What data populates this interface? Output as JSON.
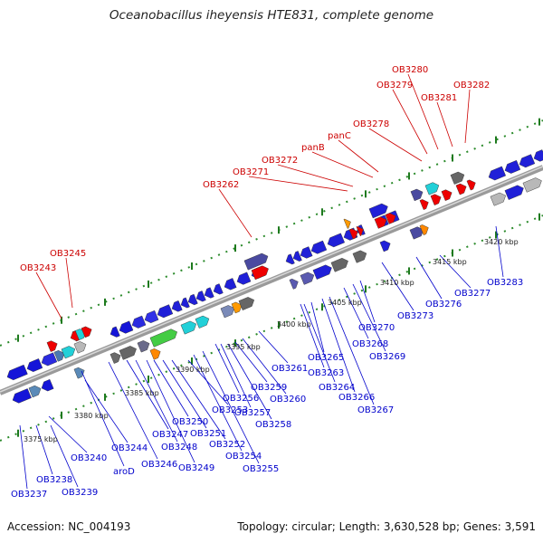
{
  "title": "Oceanobacillus iheyensis HTE831, complete genome",
  "footer": {
    "accession": "Accession: NC_004193",
    "topology": "Topology: circular; Length: 3,630,528 bp; Genes: 3,591"
  },
  "colors": {
    "forward_label": "#cc0000",
    "reverse_label": "#0000cc",
    "backbone": "#999999",
    "tick": "#1e7a1e"
  },
  "scale_labels": [
    "3375 kbp",
    "3380 kbp",
    "3385 kbp",
    "3390 kbp",
    "3395 kbp",
    "3400 kbp",
    "3405 kbp",
    "3410 kbp",
    "3415 kbp",
    "3420 kbp"
  ],
  "forward_genes": [
    "OB3243",
    "OB3245",
    "OB3262",
    "OB3271",
    "OB3272",
    "panB",
    "panC",
    "OB3278",
    "OB3279",
    "OB3280",
    "OB3281",
    "OB3282"
  ],
  "reverse_genes": [
    "OB3237",
    "OB3238",
    "OB3239",
    "OB3240",
    "aroD",
    "OB3244",
    "OB3246",
    "OB3247",
    "OB3248",
    "OB3249",
    "OB3250",
    "OB3251",
    "OB3252",
    "OB3253",
    "OB3254",
    "OB3255",
    "OB3256",
    "OB3257",
    "OB3258",
    "OB3259",
    "OB3260",
    "OB3261",
    "OB3263",
    "OB3264",
    "OB3265",
    "OB3266",
    "OB3267",
    "OB3268",
    "OB3269",
    "OB3270",
    "OB3273",
    "OB3276",
    "OB3277",
    "OB3283"
  ]
}
